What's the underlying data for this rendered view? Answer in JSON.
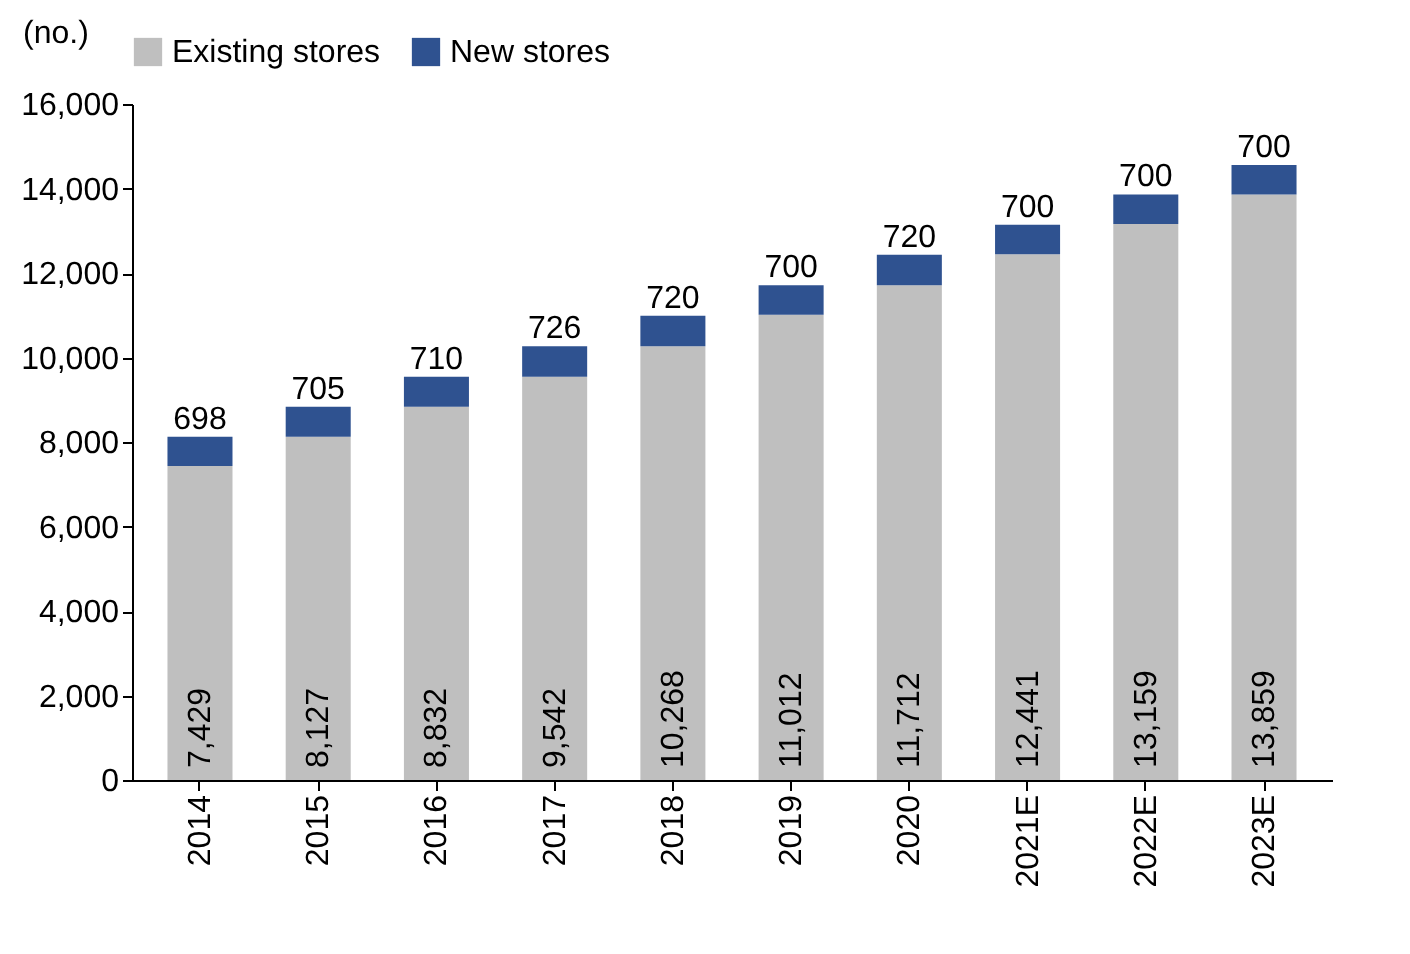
{
  "chart_data": {
    "type": "bar",
    "ylabel": "(no.)",
    "categories": [
      "2014",
      "2015",
      "2016",
      "2017",
      "2018",
      "2019",
      "2020",
      "2021E",
      "2022E",
      "2023E"
    ],
    "series": [
      {
        "name": "Existing stores",
        "color": "#bfbfbf",
        "values": [
          7429,
          8127,
          8832,
          9542,
          10268,
          11012,
          11712,
          12441,
          13159,
          13859
        ],
        "value_labels": [
          "7,429",
          "8,127",
          "8,832",
          "9,542",
          "10,268",
          "11,012",
          "11,712",
          "12,441",
          "13,159",
          "13,859"
        ]
      },
      {
        "name": "New stores",
        "color": "#2f5290",
        "values": [
          698,
          705,
          710,
          726,
          720,
          700,
          720,
          700,
          700,
          700
        ],
        "value_labels": [
          "698",
          "705",
          "710",
          "726",
          "720",
          "700",
          "720",
          "700",
          "700",
          "700"
        ]
      }
    ],
    "stacked": true,
    "ylim": [
      0,
      16000
    ],
    "yticks": [
      0,
      {
        "value": 2000,
        "label": "2,000"
      },
      {
        "value": 4000,
        "label": "4,000"
      },
      {
        "value": 6000,
        "label": "6,000"
      },
      {
        "value": 8000,
        "label": "8,000"
      },
      {
        "value": 10000,
        "label": "10,000"
      },
      {
        "value": 12000,
        "label": "12,000"
      },
      {
        "value": 14000,
        "label": "14,000"
      },
      {
        "value": 16000,
        "label": "16,000"
      }
    ],
    "grid": false,
    "legend": "top"
  }
}
